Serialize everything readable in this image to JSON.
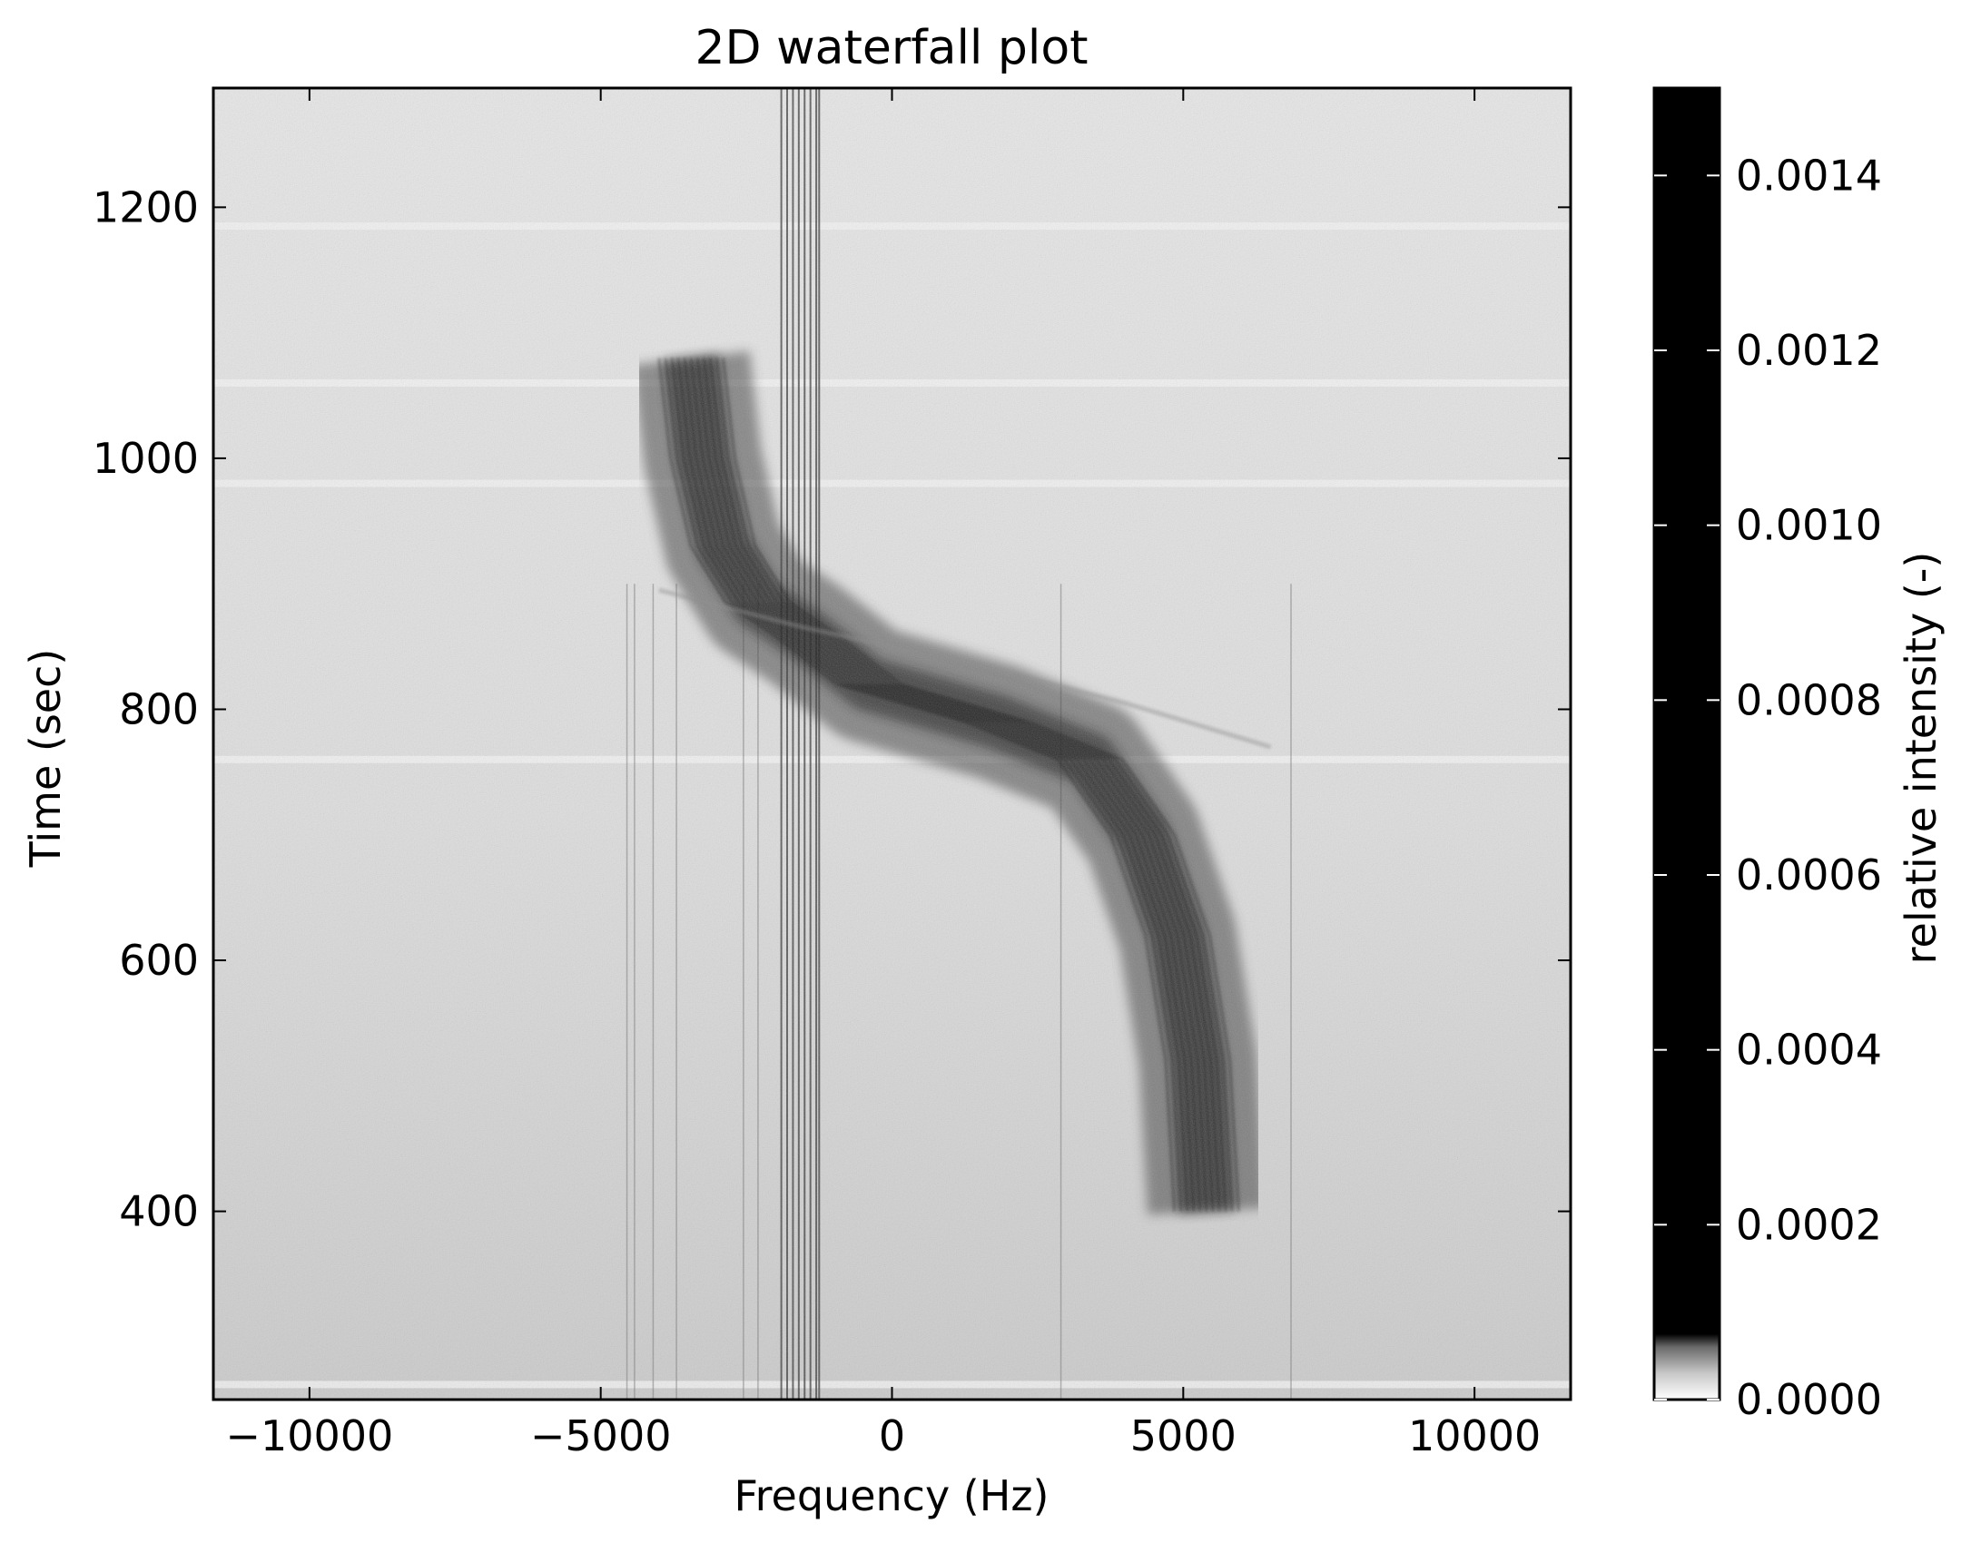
{
  "chart_data": {
    "type": "heatmap",
    "title": "2D waterfall plot",
    "xlabel": "Frequency (Hz)",
    "ylabel": "Time (sec)",
    "xlim": [
      -11650,
      11650
    ],
    "ylim": [
      250,
      1295
    ],
    "xticks": [
      -10000,
      -5000,
      0,
      5000,
      10000
    ],
    "xtick_labels": [
      "−10000",
      "−5000",
      "0",
      "5000",
      "10000"
    ],
    "yticks": [
      400,
      600,
      800,
      1000,
      1200
    ],
    "ytick_labels": [
      "400",
      "600",
      "800",
      "1000",
      "1200"
    ],
    "colormap": "gray_r",
    "colorbar": {
      "label": "relative intensity (-)",
      "range": [
        0,
        0.0015
      ],
      "ticks": [
        0,
        0.0002,
        0.0004,
        0.0006,
        0.0008,
        0.001,
        0.0012,
        0.0014
      ],
      "tick_labels": [
        "0.0000",
        "0.0002",
        "0.0004",
        "0.0006",
        "0.0008",
        "0.0010",
        "0.0012",
        "0.0014"
      ]
    },
    "features": [
      {
        "name": "S-curve Doppler signal",
        "path": [
          [
            5400,
            400
          ],
          [
            5250,
            520
          ],
          [
            4900,
            620
          ],
          [
            4300,
            700
          ],
          [
            3400,
            760
          ],
          [
            1800,
            790
          ],
          [
            -400,
            820
          ],
          [
            -1500,
            860
          ],
          [
            -2300,
            885
          ],
          [
            -2900,
            930
          ],
          [
            -3250,
            1000
          ],
          [
            -3450,
            1080
          ]
        ]
      },
      {
        "name": "faint secondary curve",
        "path": [
          [
            6500,
            770
          ],
          [
            4000,
            805
          ],
          [
            1500,
            835
          ],
          [
            -1500,
            865
          ],
          [
            -4000,
            895
          ]
        ]
      },
      {
        "name": "vertical interference lines",
        "x": [
          -4550,
          -4420,
          -4100,
          -3700,
          -2550,
          -2300,
          -1900,
          -1800,
          -1700,
          -1600,
          -1500,
          -1400,
          -1300,
          -1250,
          2900,
          6850
        ]
      },
      {
        "name": "horizontal bright bands",
        "y": [
          262,
          760,
          980,
          1060,
          1185
        ]
      }
    ]
  }
}
